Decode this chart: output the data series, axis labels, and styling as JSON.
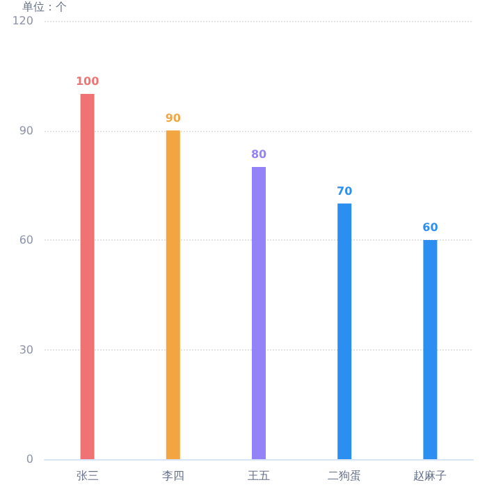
{
  "chart_data": {
    "type": "bar",
    "ylabel": "单位：个",
    "categories": [
      "张三",
      "李四",
      "王五",
      "二狗蛋",
      "赵麻子"
    ],
    "values": [
      100,
      90,
      80,
      70,
      60
    ],
    "colors": [
      "#f07373",
      "#f2a541",
      "#9482f8",
      "#2a8ff0",
      "#2a8ff0"
    ],
    "ylim": [
      0,
      120
    ],
    "yticks": [
      0,
      30,
      60,
      90,
      120
    ],
    "grid": "y",
    "data_labels": true
  }
}
